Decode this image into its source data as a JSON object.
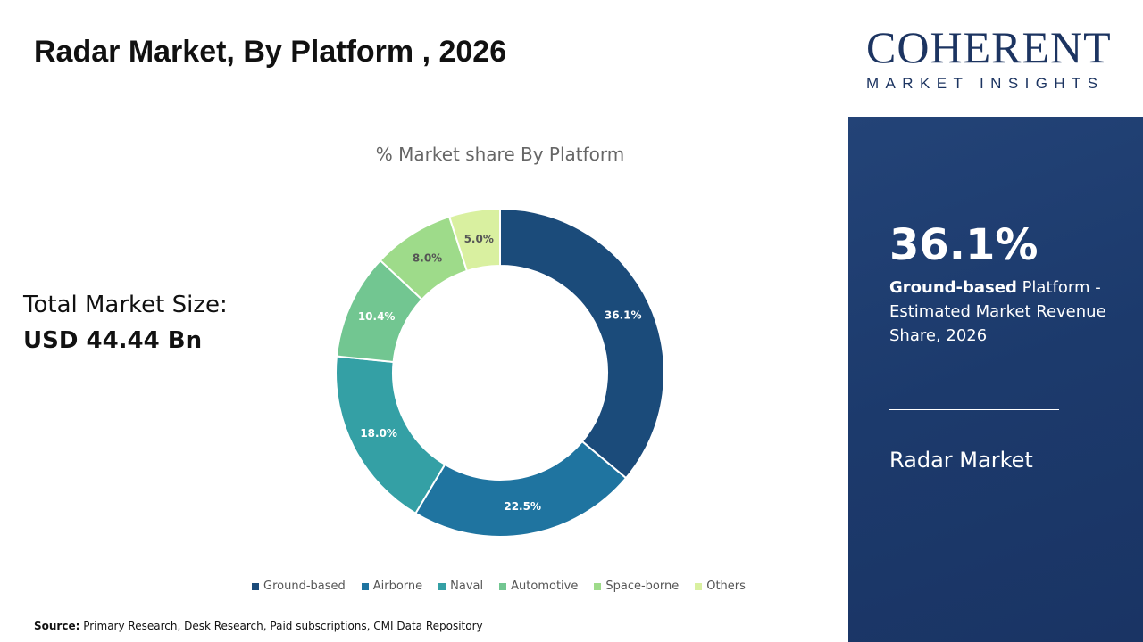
{
  "header": {
    "title": "Radar Market, By Platform , 2026"
  },
  "total": {
    "label": "Total Market Size:",
    "value": "USD 44.44 Bn"
  },
  "source": {
    "label": "Source:",
    "text": " Primary Research, Desk Research, Paid subscriptions, CMI Data Repository"
  },
  "logo": {
    "main": "COHERENT",
    "sub": "MARKET INSIGHTS"
  },
  "panel": {
    "percent": "36.1%",
    "highlight": "Ground-based",
    "desc": " Platform - Estimated Market Revenue Share, 2026",
    "market": "Radar Market"
  },
  "chart_data": {
    "type": "donut",
    "title": "% Market share By Platform",
    "categories": [
      "Ground-based",
      "Airborne",
      "Naval",
      "Automotive",
      "Space-borne",
      "Others"
    ],
    "values": [
      36.1,
      22.5,
      18.0,
      10.4,
      8.0,
      5.0
    ],
    "labels": [
      "36.1%",
      "22.5%",
      "18.0%",
      "10.4%",
      "8.0%",
      "5.0%"
    ],
    "colors": [
      "#1b4b7a",
      "#1f74a0",
      "#34a0a5",
      "#72c691",
      "#9edb8a",
      "#d9f0a0"
    ],
    "legend": "bottom"
  }
}
